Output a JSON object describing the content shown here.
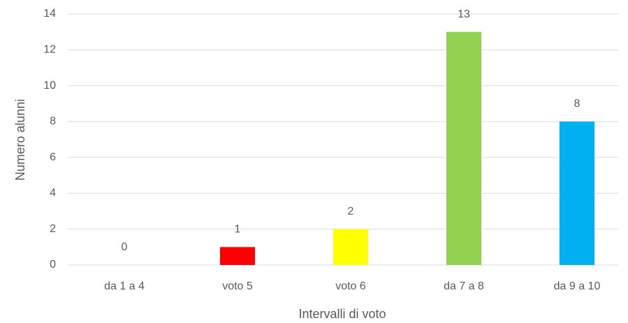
{
  "chart_data": {
    "type": "bar",
    "x_label": "Intervalli di voto",
    "y_label": "Numero alunni",
    "categories": [
      "da 1 a 4",
      "voto 5",
      "voto 6",
      "da 7 a 8",
      "da 9 a 10"
    ],
    "values": [
      0,
      1,
      2,
      13,
      8
    ],
    "colors": [
      "#4472c4",
      "#ff0000",
      "#ffff00",
      "#92d050",
      "#00b0f0"
    ],
    "ylim": [
      0,
      14
    ],
    "yticks": [
      0,
      2,
      4,
      6,
      8,
      10,
      12,
      14
    ],
    "grid": true
  }
}
